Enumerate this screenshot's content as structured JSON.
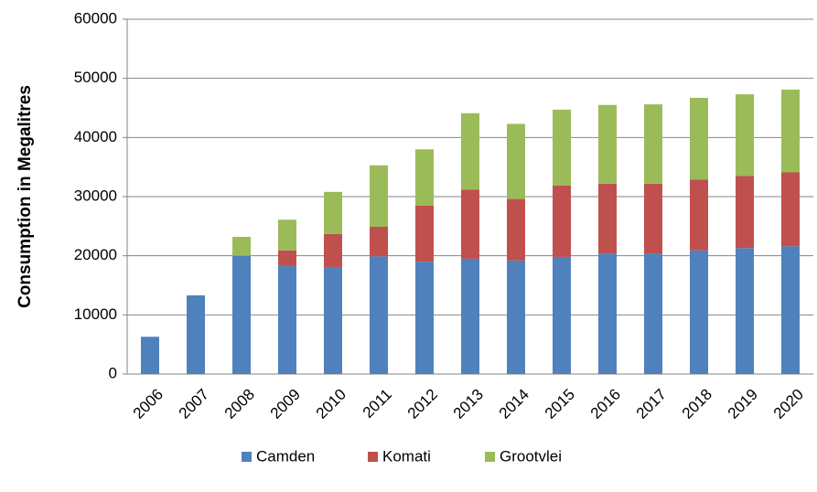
{
  "chart_data": {
    "type": "stacked_bar",
    "y_label": "Consumption in Megalitres",
    "categories": [
      "2006",
      "2007",
      "2008",
      "2009",
      "2010",
      "2011",
      "2012",
      "2013",
      "2014",
      "2015",
      "2016",
      "2017",
      "2018",
      "2019",
      "2020"
    ],
    "series": [
      {
        "name": "Camden",
        "color": "#4f81bd",
        "values": [
          6300,
          13300,
          20000,
          18400,
          18100,
          19900,
          19000,
          19500,
          19200,
          19800,
          20400,
          20400,
          20900,
          21300,
          21600
        ]
      },
      {
        "name": "Komati",
        "color": "#c0504d",
        "values": [
          0,
          0,
          0,
          2500,
          5600,
          5000,
          9500,
          11700,
          10400,
          12100,
          11800,
          11800,
          12000,
          12200,
          12500
        ]
      },
      {
        "name": "Grootvlei",
        "color": "#9bbb59",
        "values": [
          0,
          0,
          3200,
          5200,
          7100,
          10400,
          9500,
          12900,
          12700,
          12800,
          13300,
          13400,
          13800,
          13800,
          14000
        ]
      }
    ],
    "ylim": [
      0,
      60000
    ],
    "yticks": [
      0,
      10000,
      20000,
      30000,
      40000,
      50000,
      60000
    ],
    "grid": true,
    "legend": "bottom"
  }
}
